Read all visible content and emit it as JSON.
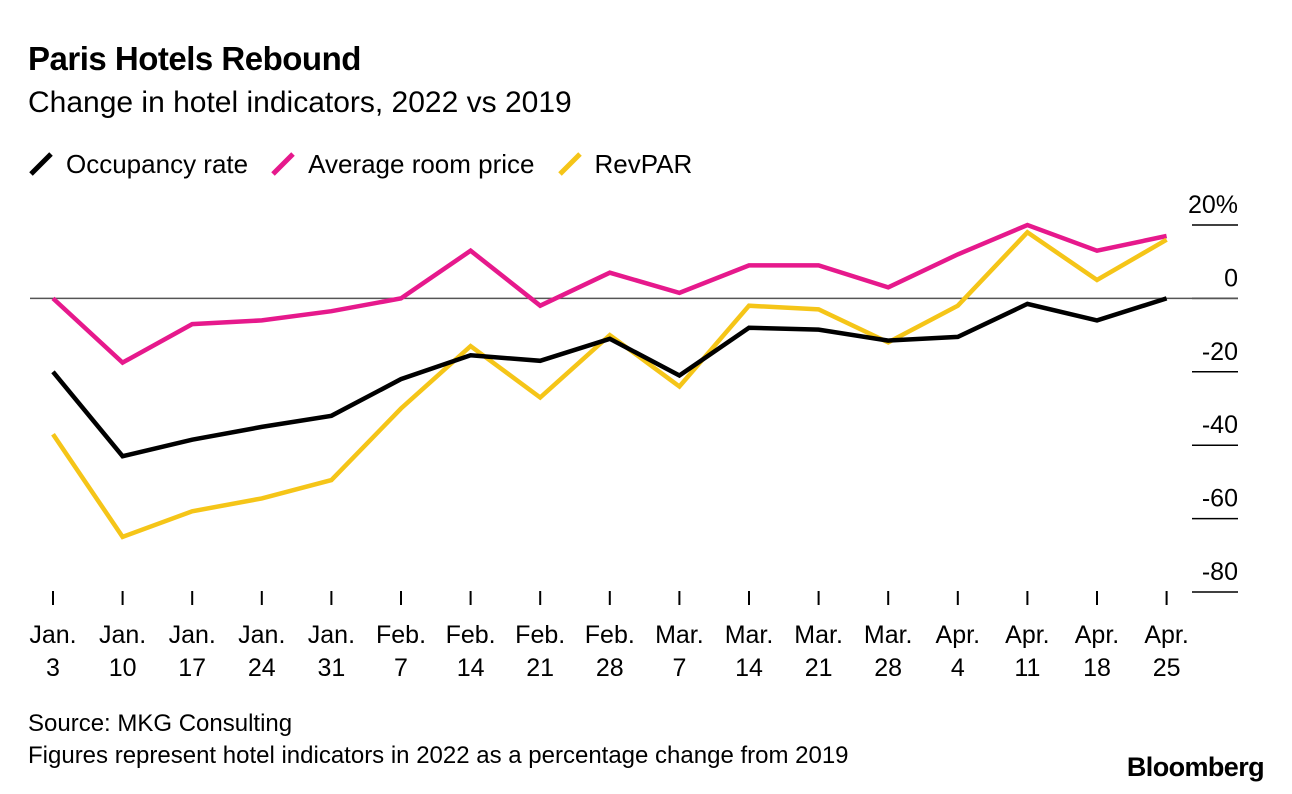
{
  "header": {
    "title": "Paris Hotels Rebound",
    "subtitle": "Change in hotel indicators, 2022 vs 2019"
  },
  "legend": [
    {
      "label": "Occupancy rate",
      "color": "#000000"
    },
    {
      "label": "Average room price",
      "color": "#e6198c"
    },
    {
      "label": "RevPAR",
      "color": "#f5c518"
    }
  ],
  "footer": {
    "source": "Source: MKG Consulting",
    "note": "Figures represent hotel indicators in 2022 as a percentage change from 2019",
    "brand": "Bloomberg"
  },
  "chart_data": {
    "type": "line",
    "title": "Paris Hotels Rebound",
    "subtitle": "Change in hotel indicators, 2022 vs 2019",
    "x_labels": [
      [
        "Jan.",
        "3"
      ],
      [
        "Jan.",
        "10"
      ],
      [
        "Jan.",
        "17"
      ],
      [
        "Jan.",
        "24"
      ],
      [
        "Jan.",
        "31"
      ],
      [
        "Feb.",
        "7"
      ],
      [
        "Feb.",
        "14"
      ],
      [
        "Feb.",
        "21"
      ],
      [
        "Feb.",
        "28"
      ],
      [
        "Mar.",
        "7"
      ],
      [
        "Mar.",
        "14"
      ],
      [
        "Mar.",
        "21"
      ],
      [
        "Mar.",
        "28"
      ],
      [
        "Apr.",
        "4"
      ],
      [
        "Apr.",
        "11"
      ],
      [
        "Apr.",
        "18"
      ],
      [
        "Apr.",
        "25"
      ]
    ],
    "y_ticks": [
      {
        "value": 20,
        "label": "20%"
      },
      {
        "value": 0,
        "label": "0"
      },
      {
        "value": -20,
        "label": "-20"
      },
      {
        "value": -40,
        "label": "-40"
      },
      {
        "value": -60,
        "label": "-60"
      },
      {
        "value": -80,
        "label": "-80"
      }
    ],
    "ylim": [
      -80,
      20
    ],
    "y_axis_side": "right",
    "zero_line": true,
    "grid": false,
    "legend_position": "top-left",
    "series": [
      {
        "name": "Occupancy rate",
        "color": "#000000",
        "values": [
          -20,
          -43,
          -38.5,
          -35,
          -32,
          -22,
          -15.5,
          -17,
          -11,
          -21,
          -8,
          -8.5,
          -11.5,
          -10.5,
          -1.5,
          -6,
          0
        ]
      },
      {
        "name": "Average room price",
        "color": "#e6198c",
        "values": [
          0,
          -17.5,
          -7,
          -6,
          -3.5,
          0,
          13,
          -2,
          7,
          1.5,
          9,
          9,
          3,
          12,
          20,
          13,
          17
        ]
      },
      {
        "name": "RevPAR",
        "color": "#f5c518",
        "values": [
          -37,
          -65,
          -58,
          -54.5,
          -49.5,
          -30,
          -13,
          -27,
          -10,
          -24,
          -2,
          -3,
          -12,
          -2,
          18,
          5,
          16
        ]
      }
    ]
  }
}
